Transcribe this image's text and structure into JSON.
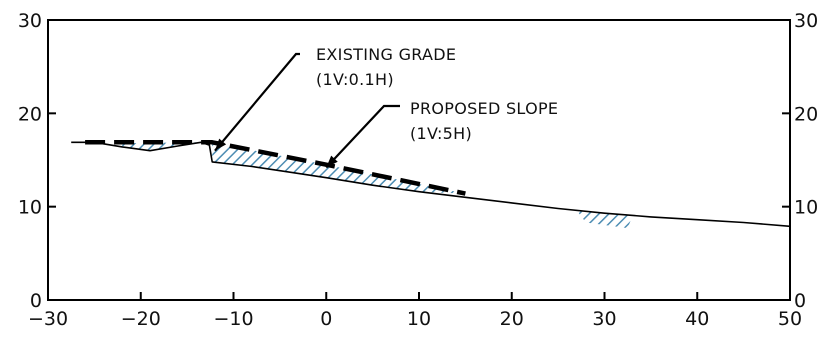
{
  "chart_data": {
    "type": "line",
    "xlim": [
      -30,
      50
    ],
    "ylim": [
      0,
      30
    ],
    "x_ticks": [
      "-30",
      "-20",
      "-10",
      "0",
      "10",
      "20",
      "30",
      "40",
      "50"
    ],
    "y_ticks_left": [
      "0",
      "10",
      "20",
      "30"
    ],
    "y_ticks_right": [
      "0",
      "10",
      "20",
      "30"
    ],
    "grid": false,
    "series": [
      {
        "key": "existing",
        "style": "solid",
        "color": "#000000",
        "points": [
          [
            -27.5,
            16.9
          ],
          [
            -25,
            16.9
          ],
          [
            -22,
            16.4
          ],
          [
            -19,
            16.0
          ],
          [
            -16,
            16.5
          ],
          [
            -13.5,
            16.9
          ],
          [
            -12.6,
            16.6
          ],
          [
            -12.3,
            14.8
          ],
          [
            -8,
            14.3
          ],
          [
            -4,
            13.7
          ],
          [
            0,
            13.1
          ],
          [
            5,
            12.3
          ],
          [
            10,
            11.6
          ],
          [
            15,
            11.0
          ],
          [
            20,
            10.4
          ],
          [
            25,
            9.8
          ],
          [
            30,
            9.3
          ],
          [
            35,
            8.9
          ],
          [
            40,
            8.6
          ],
          [
            45,
            8.3
          ],
          [
            50,
            7.9
          ]
        ]
      },
      {
        "key": "proposed",
        "style": "dashed",
        "color": "#000000",
        "points": [
          [
            -26,
            16.9
          ],
          [
            -12.3,
            16.9
          ],
          [
            0,
            14.5
          ],
          [
            15,
            11.4
          ]
        ]
      }
    ],
    "hatch_regions": [
      {
        "key": "left-fill",
        "color": "#4d8db3",
        "points": [
          [
            -22,
            16.8
          ],
          [
            -13.5,
            16.9
          ],
          [
            -16,
            16.5
          ],
          [
            -19,
            16.0
          ],
          [
            -22,
            16.4
          ]
        ]
      },
      {
        "key": "slope-fill",
        "color": "#4d8db3",
        "points": [
          [
            -12.3,
            16.9
          ],
          [
            0,
            14.5
          ],
          [
            15,
            11.4
          ],
          [
            10,
            11.6
          ],
          [
            5,
            12.3
          ],
          [
            0,
            13.1
          ],
          [
            -4,
            13.7
          ],
          [
            -8,
            14.3
          ],
          [
            -12.3,
            14.8
          ]
        ]
      },
      {
        "key": "right-fill",
        "color": "#4d8db3",
        "points": [
          [
            27,
            9.6
          ],
          [
            33,
            9.0
          ],
          [
            32.5,
            7.7
          ],
          [
            28,
            8.3
          ]
        ]
      }
    ],
    "annotations": [
      {
        "key": "existing-grade",
        "lines": [
          "EXISTING GRADE",
          "(1V:0.1H)"
        ],
        "points_to": [
          -12.0,
          16.0
        ]
      },
      {
        "key": "proposed-slope",
        "lines": [
          "PROPOSED SLOPE",
          "(1V:5H)"
        ],
        "points_to": [
          0.0,
          14.2
        ]
      }
    ]
  }
}
